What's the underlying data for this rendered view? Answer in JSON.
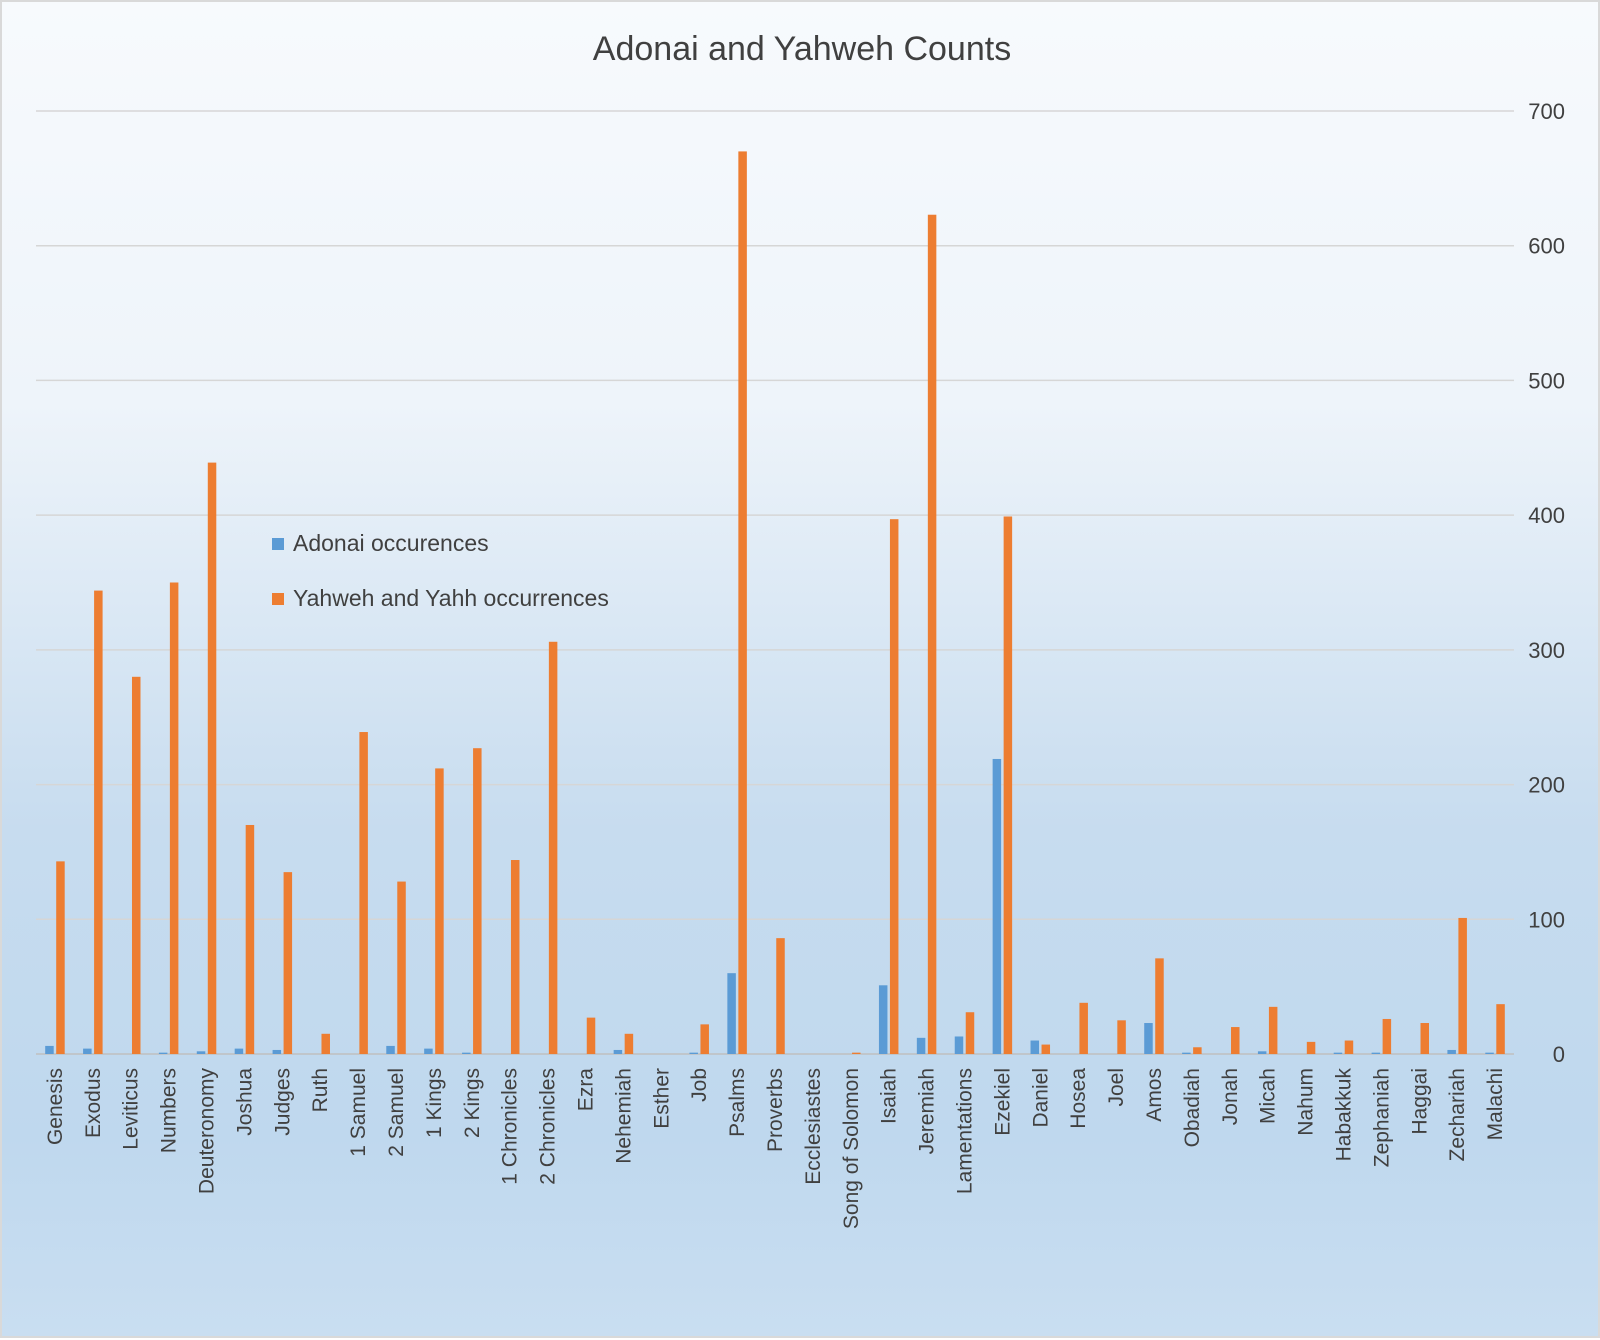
{
  "chart_data": {
    "type": "bar",
    "title": "Adonai and Yahweh Counts",
    "xlabel": "",
    "ylabel": "",
    "ylim": [
      0,
      700
    ],
    "yticks": [
      0,
      100,
      200,
      300,
      400,
      500,
      600,
      700
    ],
    "y_axis_side": "right",
    "grid": true,
    "legend_position": "inside-left",
    "categories": [
      "Genesis",
      "Exodus",
      "Leviticus",
      "Numbers",
      "Deuteronomy",
      "Joshua",
      "Judges",
      "Ruth",
      "1 Samuel",
      "2 Samuel",
      "1 Kings",
      "2 Kings",
      "1 Chronicles",
      "2 Chronicles",
      "Ezra",
      "Nehemiah",
      "Esther",
      "Job",
      "Psalms",
      "Proverbs",
      "Ecclesiastes",
      "Song of Solomon",
      "Isaiah",
      "Jeremiah",
      "Lamentations",
      "Ezekiel",
      "Daniel",
      "Hosea",
      "Joel",
      "Amos",
      "Obadiah",
      "Jonah",
      "Micah",
      "Nahum",
      "Habakkuk",
      "Zephaniah",
      "Haggai",
      "Zechariah",
      "Malachi"
    ],
    "series": [
      {
        "name": "Adonai occurences",
        "color": "#5b9bd5",
        "values": [
          6,
          4,
          0,
          1,
          2,
          4,
          3,
          0,
          0,
          6,
          4,
          1,
          0,
          0,
          0,
          3,
          0,
          1,
          60,
          0,
          0,
          0,
          51,
          12,
          13,
          219,
          10,
          0,
          0,
          23,
          1,
          0,
          2,
          0,
          1,
          1,
          0,
          3,
          1
        ]
      },
      {
        "name": "Yahweh and Yahh occurrences",
        "color": "#ed7d31",
        "values": [
          143,
          344,
          280,
          350,
          439,
          170,
          135,
          15,
          239,
          128,
          212,
          227,
          144,
          306,
          27,
          15,
          0,
          22,
          670,
          86,
          0,
          1,
          397,
          623,
          31,
          399,
          7,
          38,
          25,
          71,
          5,
          20,
          35,
          9,
          10,
          26,
          23,
          101,
          37
        ]
      }
    ]
  }
}
